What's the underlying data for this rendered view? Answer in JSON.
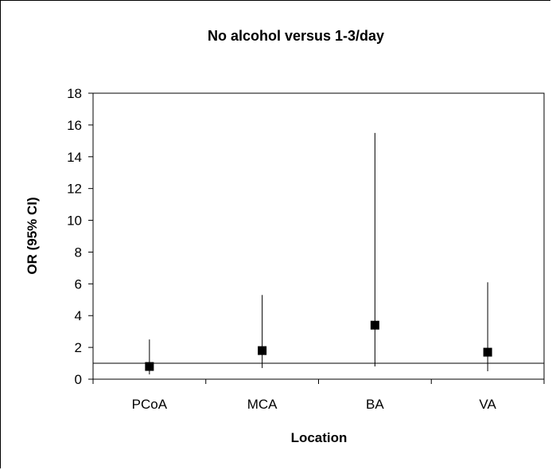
{
  "chart_data": {
    "type": "scatter",
    "title": "No alcohol versus 1-3/day",
    "xlabel": "Location",
    "ylabel": "OR (95% CI)",
    "categories": [
      "PCoA",
      "MCA",
      "BA",
      "VA"
    ],
    "series": [
      {
        "values": [
          0.8,
          1.8,
          3.4,
          1.7
        ],
        "ci_lower": [
          0.3,
          0.7,
          0.8,
          0.5
        ],
        "ci_upper": [
          2.5,
          5.3,
          15.5,
          6.1
        ]
      }
    ],
    "reference_line": 1,
    "ylim": [
      0,
      18
    ],
    "yticks": [
      "0",
      "2",
      "4",
      "6",
      "8",
      "10",
      "12",
      "14",
      "16",
      "18"
    ],
    "grid": false,
    "marker": "square",
    "colors": {
      "marker": "#000000",
      "line": "#000000"
    }
  }
}
